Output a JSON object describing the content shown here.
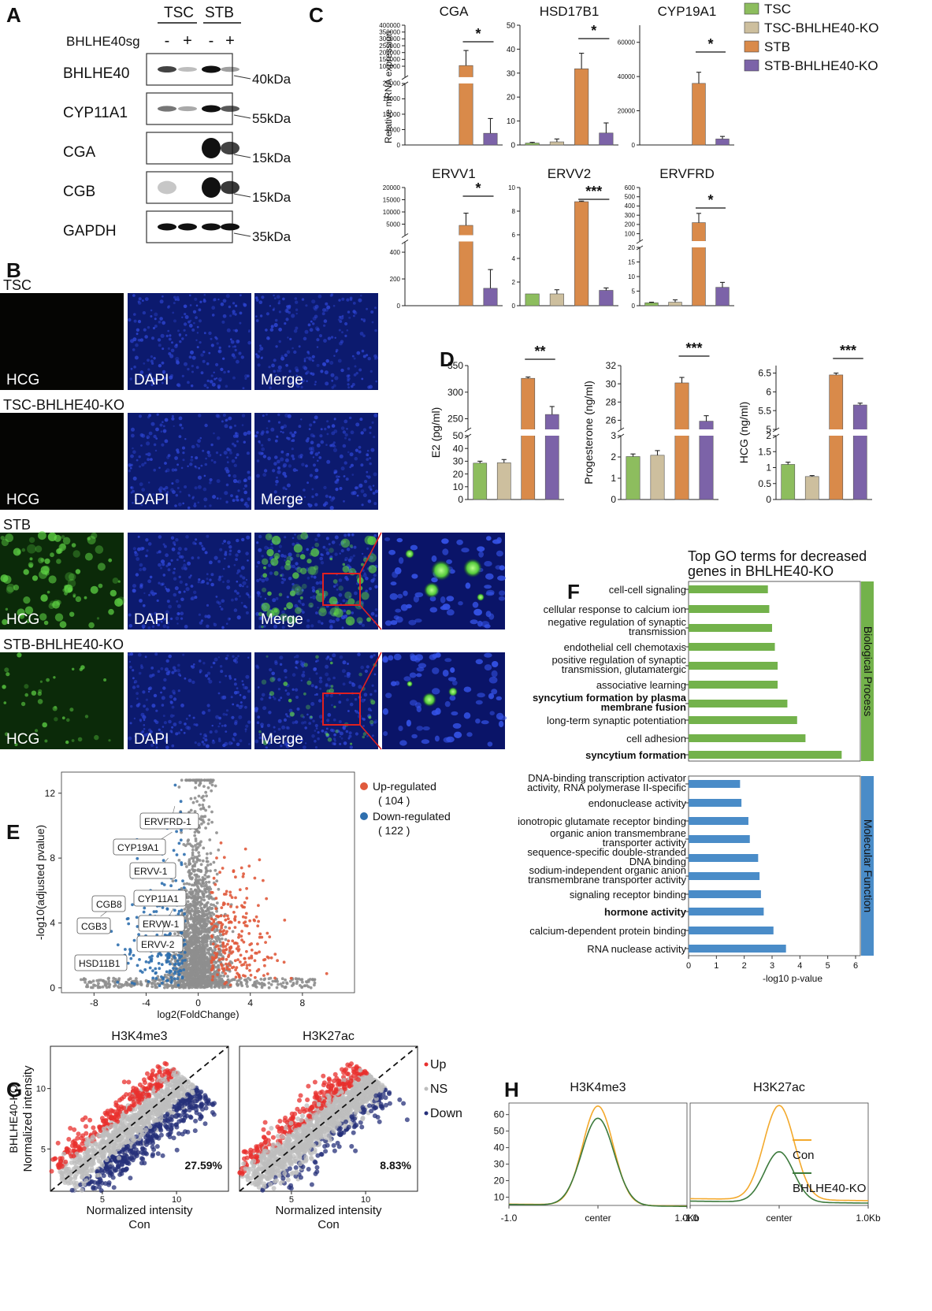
{
  "panels": {
    "A": {
      "label": "A",
      "groups": [
        "TSC",
        "STB"
      ],
      "treatment": "BHLHE40sg",
      "signs": [
        "-",
        "+",
        "-",
        "+"
      ],
      "rows": [
        {
          "protein": "BHLHE40",
          "marker": "40kDa",
          "intensity": [
            0.75,
            0.15,
            1.0,
            0.3
          ]
        },
        {
          "protein": "CYP11A1",
          "marker": "55kDa",
          "intensity": [
            0.5,
            0.25,
            1.0,
            0.65
          ]
        },
        {
          "protein": "CGA",
          "marker": "15kDa",
          "intensity": [
            0.0,
            0.0,
            1.0,
            0.75
          ]
        },
        {
          "protein": "CGB",
          "marker": "15kDa",
          "intensity": [
            0.1,
            0.0,
            1.0,
            0.8
          ]
        },
        {
          "protein": "GAPDH",
          "marker": "35kDa",
          "intensity": [
            1.0,
            1.0,
            1.0,
            1.0
          ]
        }
      ]
    },
    "B": {
      "label": "B",
      "rows": [
        {
          "title": "TSC",
          "channels": [
            "HCG",
            "DAPI",
            "Merge"
          ],
          "green_signal": 0.0,
          "zoom": false
        },
        {
          "title": "TSC-BHLHE40-KO",
          "channels": [
            "HCG",
            "DAPI",
            "Merge"
          ],
          "green_signal": 0.0,
          "zoom": false
        },
        {
          "title": "STB",
          "channels": [
            "HCG",
            "DAPI",
            "Merge"
          ],
          "green_signal": 1.0,
          "zoom": true
        },
        {
          "title": "STB-BHLHE40-KO",
          "channels": [
            "HCG",
            "DAPI",
            "Merge"
          ],
          "green_signal": 0.4,
          "zoom": true
        }
      ]
    },
    "C": {
      "label": "C",
      "ylabel": "Relative mRNA expression"
    },
    "D": {
      "label": "D"
    },
    "E": {
      "label": "E"
    },
    "F": {
      "label": "F"
    },
    "G": {
      "label": "G"
    },
    "H": {
      "label": "H"
    }
  },
  "legend_groups": {
    "names": [
      "TSC",
      "TSC-BHLHE40-KO",
      "STB",
      "STB-BHLHE40-KO"
    ],
    "colors": [
      "#8dbd5e",
      "#cdbf9e",
      "#d98a4a",
      "#7c63a8"
    ]
  },
  "chart_data": [
    {
      "type": "bar",
      "id": "C-CGA",
      "title": "CGA",
      "categories": [
        "TSC",
        "TSC-BHLHE40-KO",
        "STB",
        "STB-BHLHE40-KO"
      ],
      "values": [
        0,
        0,
        105000,
        3800
      ],
      "errors": [
        0,
        0,
        110000,
        4800
      ],
      "broken_axis": {
        "lower": [
          0,
          20000
        ],
        "lower_ticks": [
          0,
          5000,
          10000,
          15000,
          20000
        ],
        "upper": [
          20000,
          400000
        ],
        "upper_ticks": [
          100000,
          150000,
          200000,
          250000,
          300000,
          350000,
          400000
        ]
      },
      "significance": "*"
    },
    {
      "type": "bar",
      "id": "C-HSD17B1",
      "title": "HSD17B1",
      "categories": [
        "TSC",
        "TSC-BHLHE40-KO",
        "STB",
        "STB-BHLHE40-KO"
      ],
      "values": [
        0.8,
        1.3,
        31.8,
        5.0
      ],
      "errors": [
        0.3,
        1.2,
        6.5,
        4.2
      ],
      "ylim": [
        0,
        50
      ],
      "yticks": [
        0,
        10,
        20,
        30,
        40,
        50
      ],
      "significance": "*"
    },
    {
      "type": "bar",
      "id": "C-CYP19A1",
      "title": "CYP19A1",
      "categories": [
        "TSC",
        "TSC-BHLHE40-KO",
        "STB",
        "STB-BHLHE40-KO"
      ],
      "values": [
        0,
        0,
        36000,
        3500
      ],
      "errors": [
        0,
        0,
        6500,
        1500
      ],
      "ylim": [
        0,
        70000
      ],
      "yticks": [
        0,
        20000,
        40000,
        60000
      ],
      "significance": "*"
    },
    {
      "type": "bar",
      "id": "C-ERVV1",
      "title": "ERVV1",
      "categories": [
        "TSC",
        "TSC-BHLHE40-KO",
        "STB",
        "STB-BHLHE40-KO"
      ],
      "values": [
        0,
        0,
        4500,
        130
      ],
      "errors": [
        0,
        0,
        5000,
        140
      ],
      "broken_axis": {
        "lower": [
          0,
          480
        ],
        "lower_ticks": [
          0,
          200,
          400
        ],
        "upper": [
          480,
          20000
        ],
        "upper_ticks": [
          5000,
          10000,
          15000,
          20000
        ]
      },
      "significance": "*"
    },
    {
      "type": "bar",
      "id": "C-ERVV2",
      "title": "ERVV2",
      "categories": [
        "TSC",
        "TSC-BHLHE40-KO",
        "STB",
        "STB-BHLHE40-KO"
      ],
      "values": [
        1.0,
        1.0,
        8.8,
        1.3
      ],
      "errors": [
        0.0,
        0.35,
        0.05,
        0.2
      ],
      "ylim": [
        0,
        10
      ],
      "yticks": [
        0,
        2,
        4,
        6,
        8,
        10
      ],
      "significance": "***"
    },
    {
      "type": "bar",
      "id": "C-ERVFRD",
      "title": "ERVFRD",
      "categories": [
        "TSC",
        "TSC-BHLHE40-KO",
        "STB",
        "STB-BHLHE40-KO"
      ],
      "values": [
        1.0,
        1.2,
        220,
        6.3
      ],
      "errors": [
        0.2,
        0.8,
        100,
        1.7
      ],
      "broken_axis": {
        "lower": [
          0,
          20
        ],
        "lower_ticks": [
          0,
          5,
          10,
          15,
          20
        ],
        "upper": [
          20,
          600
        ],
        "upper_ticks": [
          100,
          200,
          300,
          400,
          500,
          600
        ]
      },
      "significance": "*"
    },
    {
      "type": "bar",
      "id": "D-E2",
      "ylabel": "E2 (pg/ml)",
      "categories": [
        "TSC",
        "TSC-BHLHE40-KO",
        "STB",
        "STB-BHLHE40-KO"
      ],
      "values": [
        28.5,
        28.8,
        326,
        258
      ],
      "errors": [
        1.5,
        2.5,
        2.5,
        15
      ],
      "broken_axis": {
        "lower": [
          0,
          50
        ],
        "lower_ticks": [
          0,
          10,
          20,
          30,
          40,
          50
        ],
        "upper": [
          230,
          350
        ],
        "upper_ticks": [
          250,
          300,
          350
        ]
      },
      "significance": "**"
    },
    {
      "type": "bar",
      "id": "D-Progesterone",
      "ylabel": "Progesterone (ng/ml)",
      "categories": [
        "TSC",
        "TSC-BHLHE40-KO",
        "STB",
        "STB-BHLHE40-KO"
      ],
      "values": [
        2.02,
        2.08,
        30.1,
        25.9
      ],
      "errors": [
        0.12,
        0.22,
        0.6,
        0.6
      ],
      "broken_axis": {
        "lower": [
          0,
          3
        ],
        "lower_ticks": [
          0,
          1,
          2,
          3
        ],
        "upper": [
          25,
          32
        ],
        "upper_ticks": [
          26,
          28,
          30,
          32
        ]
      },
      "significance": "***"
    },
    {
      "type": "bar",
      "id": "D-HCG",
      "ylabel": "HCG (ng/ml)",
      "categories": [
        "TSC",
        "TSC-BHLHE40-KO",
        "STB",
        "STB-BHLHE40-KO"
      ],
      "values": [
        1.1,
        0.72,
        6.45,
        5.65
      ],
      "errors": [
        0.07,
        0.03,
        0.05,
        0.05
      ],
      "broken_axis": {
        "lower": [
          0,
          2
        ],
        "lower_ticks": [
          0.0,
          0.5,
          1.0,
          1.5,
          2.0
        ],
        "upper": [
          5,
          6.7
        ],
        "upper_ticks": [
          5.0,
          5.5,
          6.0,
          6.5
        ]
      },
      "significance": "***"
    },
    {
      "type": "scatter",
      "id": "E-volcano",
      "xlabel": "log2(FoldChange)",
      "ylabel": "-log10(adjusted pvalue)",
      "xlim": [
        -10.5,
        12
      ],
      "ylim": [
        -0.3,
        13.3
      ],
      "xticks": [
        -8,
        -4,
        0,
        4,
        8
      ],
      "yticks": [
        0,
        4,
        8,
        12
      ],
      "legend": [
        {
          "name": "Up-regulated",
          "count": "( 104 )",
          "color": "#e05a3c"
        },
        {
          "name": "Down-regulated",
          "count": "( 122 )",
          "color": "#2f6fae"
        }
      ],
      "annotations": [
        {
          "label": "ERVFRD-1",
          "x": -1.8,
          "y": 11.2
        },
        {
          "label": "CYP19A1",
          "x": -2.0,
          "y": 9.6
        },
        {
          "label": "ERVV-1",
          "x": -2.3,
          "y": 8.0
        },
        {
          "label": "CYP11A1",
          "x": -2.0,
          "y": 5.4
        },
        {
          "label": "ERVW-1",
          "x": -1.9,
          "y": 4.9
        },
        {
          "label": "ERVV-2",
          "x": -2.6,
          "y": 4.1
        },
        {
          "label": "CGB8",
          "x": -7.5,
          "y": 4.4
        },
        {
          "label": "CGB3",
          "x": -7.8,
          "y": 3.7
        },
        {
          "label": "HSD11B1",
          "x": -6.8,
          "y": 1.6
        }
      ]
    },
    {
      "type": "bar",
      "id": "F-GO",
      "orientation": "horizontal",
      "title": "Top GO terms for decreased genes in BHLHE40-KO",
      "xlabel": "-log10 p-value",
      "xlim": [
        0,
        6
      ],
      "xticks": [
        0,
        1,
        2,
        3,
        4,
        5,
        6
      ],
      "series": [
        {
          "name": "Biological Process",
          "color": "#73b24b",
          "terms": [
            {
              "label": [
                "cell-cell signaling"
              ],
              "value": 2.85,
              "highlight": false
            },
            {
              "label": [
                "cellular response to calcium ion"
              ],
              "value": 2.9,
              "highlight": false
            },
            {
              "label": [
                "negative regulation of synaptic",
                "transmission"
              ],
              "value": 3.0,
              "highlight": false
            },
            {
              "label": [
                "endothelial cell chemotaxis"
              ],
              "value": 3.1,
              "highlight": false
            },
            {
              "label": [
                "positive regulation of synaptic",
                "transmission, glutamatergic"
              ],
              "value": 3.2,
              "highlight": false
            },
            {
              "label": [
                "associative learning"
              ],
              "value": 3.2,
              "highlight": false
            },
            {
              "label": [
                "syncytium formation by plasma",
                "membrane fusion"
              ],
              "value": 3.55,
              "highlight": true
            },
            {
              "label": [
                "long-term synaptic potentiation"
              ],
              "value": 3.9,
              "highlight": false
            },
            {
              "label": [
                "cell adhesion"
              ],
              "value": 4.2,
              "highlight": false
            },
            {
              "label": [
                "syncytium formation"
              ],
              "value": 5.5,
              "highlight": true
            }
          ]
        },
        {
          "name": "Molecular Function",
          "color": "#4a8cc8",
          "terms": [
            {
              "label": [
                "DNA-binding transcription activator",
                "activity, RNA polymerase II-specific"
              ],
              "value": 1.85,
              "highlight": false
            },
            {
              "label": [
                "endonuclease activity"
              ],
              "value": 1.9,
              "highlight": false
            },
            {
              "label": [
                "ionotropic glutamate receptor binding"
              ],
              "value": 2.15,
              "highlight": false
            },
            {
              "label": [
                "organic anion transmembrane",
                "transporter activity"
              ],
              "value": 2.2,
              "highlight": false
            },
            {
              "label": [
                "sequence-specific double-stranded",
                "DNA binding"
              ],
              "value": 2.5,
              "highlight": false
            },
            {
              "label": [
                "sodium-independent organic anion",
                "transmembrane transporter activity"
              ],
              "value": 2.55,
              "highlight": false
            },
            {
              "label": [
                "signaling receptor binding"
              ],
              "value": 2.6,
              "highlight": false
            },
            {
              "label": [
                "hormone activity"
              ],
              "value": 2.7,
              "highlight": true
            },
            {
              "label": [
                "calcium-dependent protein binding"
              ],
              "value": 3.05,
              "highlight": false
            },
            {
              "label": [
                "RNA nuclease activity"
              ],
              "value": 3.5,
              "highlight": false
            }
          ]
        }
      ]
    },
    {
      "type": "scatter",
      "id": "G-H3K4me3",
      "title": "H3K4me3",
      "xlabel": [
        "Normalized intensity",
        "Con"
      ],
      "ylabel": [
        "Normalized intensity",
        "BHLHE40-KO"
      ],
      "xlim": [
        1.5,
        13.5
      ],
      "ylim": [
        1.5,
        13.5
      ],
      "xticks": [
        5,
        10
      ],
      "yticks": [
        5,
        10
      ],
      "percent_label": "27.59%",
      "down_fraction": 0.2759,
      "legend": [
        {
          "name": "Up",
          "color": "#e8302e"
        },
        {
          "name": "NS",
          "color": "#bdbdbd"
        },
        {
          "name": "Down",
          "color": "#26307a"
        }
      ]
    },
    {
      "type": "scatter",
      "id": "G-H3K27ac",
      "title": "H3K27ac",
      "xlabel": [
        "Normalized intensity",
        "Con"
      ],
      "xlim": [
        1.5,
        13.5
      ],
      "ylim": [
        1.5,
        13.5
      ],
      "xticks": [
        5,
        10
      ],
      "percent_label": "8.83%",
      "down_fraction": 0.0883
    },
    {
      "type": "line",
      "id": "H-H3K4me3",
      "title": "H3K4me3",
      "xticklabels": [
        "-1.0",
        "center",
        "1.0Kb"
      ],
      "ylim": [
        5,
        67
      ],
      "yticks": [
        10,
        20,
        30,
        40,
        50,
        60
      ],
      "series": [
        {
          "name": "Con",
          "color": "#f3a92c",
          "baseline": 5.2,
          "peak": 65.2,
          "width": 0.18
        },
        {
          "name": "BHLHE40-KO",
          "color": "#3c7a3c",
          "baseline": 5.0,
          "peak": 57.8,
          "width": 0.19
        }
      ]
    },
    {
      "type": "line",
      "id": "H-H3K27ac",
      "title": "H3K27ac",
      "xticklabels": [
        "-1.0",
        "center",
        "1.0Kb"
      ],
      "ylim": [
        5,
        67
      ],
      "legend": [
        "Con",
        "BHLHE40-KO"
      ],
      "series": [
        {
          "name": "Con",
          "color": "#f3a92c",
          "baseline": 8.5,
          "peak": 65.5,
          "width": 0.18
        },
        {
          "name": "BHLHE40-KO",
          "color": "#3c7a3c",
          "baseline": 7.0,
          "peak": 37.5,
          "width": 0.17
        }
      ]
    }
  ]
}
